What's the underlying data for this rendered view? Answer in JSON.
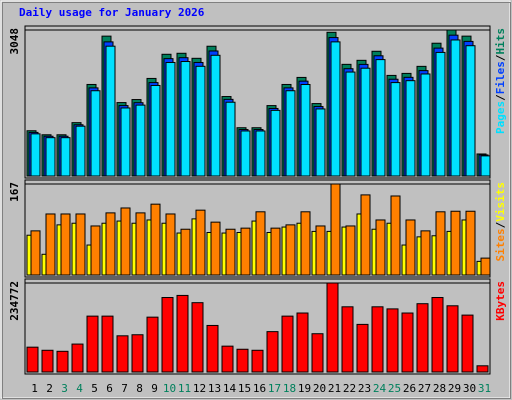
{
  "chart_data": [
    {
      "type": "bar",
      "title": "Daily usage for January 2026",
      "ylim": [
        0,
        3048
      ],
      "yticks": [
        3048
      ],
      "legend_separator": "/",
      "series": [
        {
          "name": "Hits",
          "color": "#00805c",
          "values": [
            945,
            861,
            861,
            1114,
            1911,
            2920,
            1533,
            1596,
            2037,
            2541,
            2562,
            2457,
            2709,
            1659,
            1008,
            1008,
            1470,
            1911,
            2058,
            1512,
            3000,
            2331,
            2415,
            2604,
            2100,
            2142,
            2289,
            2772,
            3048,
            2920,
            460
          ]
        },
        {
          "name": "Files",
          "color": "#0040ff",
          "values": [
            910,
            830,
            830,
            1070,
            1840,
            2800,
            1470,
            1530,
            1950,
            2450,
            2470,
            2370,
            2610,
            1600,
            970,
            970,
            1410,
            1840,
            1980,
            1450,
            2890,
            2240,
            2330,
            2510,
            2020,
            2060,
            2200,
            2670,
            2940,
            2810,
            440
          ]
        },
        {
          "name": "Pages",
          "color": "#00e0ff",
          "values": [
            880,
            800,
            800,
            1040,
            1780,
            2710,
            1420,
            1480,
            1890,
            2370,
            2390,
            2290,
            2520,
            1540,
            940,
            940,
            1370,
            1780,
            1910,
            1400,
            2800,
            2170,
            2250,
            2430,
            1950,
            1990,
            2130,
            2580,
            2840,
            2720,
            420
          ]
        }
      ]
    },
    {
      "type": "bar",
      "ylim": [
        0,
        167
      ],
      "yticks": [
        167
      ],
      "legend_separator": "/",
      "series": [
        {
          "name": "Visits",
          "color": "#ffff00",
          "values": [
            73,
            38,
            92,
            95,
            55,
            95,
            99,
            95,
            101,
            95,
            77,
            103,
            78,
            77,
            78,
            99,
            78,
            88,
            95,
            80,
            80,
            88,
            112,
            84,
            95,
            55,
            70,
            72,
            80,
            101,
            25
          ]
        },
        {
          "name": "Sites",
          "color": "#ff8000",
          "values": [
            81,
            112,
            112,
            112,
            90,
            114,
            123,
            114,
            130,
            112,
            84,
            119,
            97,
            84,
            86,
            116,
            86,
            92,
            116,
            90,
            167,
            90,
            147,
            101,
            145,
            101,
            81,
            116,
            117,
            117,
            31
          ]
        }
      ]
    },
    {
      "type": "bar",
      "ylim": [
        0,
        234772
      ],
      "yticks": [
        234772
      ],
      "categories": [
        "1",
        "2",
        "3",
        "4",
        "5",
        "6",
        "7",
        "8",
        "9",
        "10",
        "11",
        "12",
        "13",
        "14",
        "15",
        "16",
        "17",
        "18",
        "19",
        "20",
        "21",
        "22",
        "23",
        "24",
        "25",
        "26",
        "27",
        "28",
        "29",
        "30",
        "31"
      ],
      "category_colors": [
        "#000000",
        "#000000",
        "#00805c",
        "#00805c",
        "#000000",
        "#000000",
        "#000000",
        "#000000",
        "#000000",
        "#00805c",
        "#00805c",
        "#000000",
        "#000000",
        "#000000",
        "#000000",
        "#000000",
        "#00805c",
        "#00805c",
        "#000000",
        "#000000",
        "#000000",
        "#000000",
        "#000000",
        "#00805c",
        "#00805c",
        "#000000",
        "#000000",
        "#000000",
        "#000000",
        "#000000",
        "#00805c"
      ],
      "series": [
        {
          "name": "KBytes",
          "color": "#ff0000",
          "values": [
            65500,
            57300,
            54600,
            73700,
            147400,
            147400,
            95500,
            98300,
            144700,
            196500,
            202000,
            182900,
            122800,
            68200,
            60000,
            57300,
            106500,
            147400,
            155600,
            101000,
            234772,
            172000,
            125600,
            172000,
            166500,
            155600,
            180200,
            196500,
            174700,
            150100,
            16400
          ]
        }
      ]
    }
  ]
}
